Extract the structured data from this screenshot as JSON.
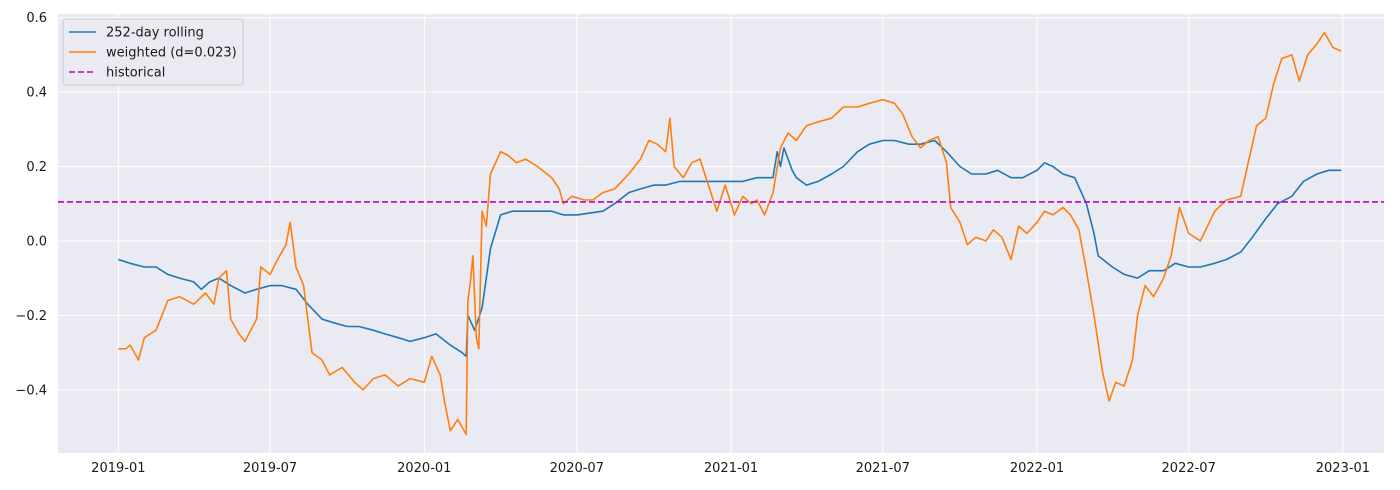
{
  "chart_data": {
    "type": "line",
    "title": "",
    "xlabel": "",
    "ylabel": "",
    "xlim": [
      "2018-10-21",
      "2023-02-19"
    ],
    "ylim": [
      -0.57,
      0.61
    ],
    "grid": true,
    "legend_position": "top-left",
    "x_ticks": [
      "2019-01",
      "2019-07",
      "2020-01",
      "2020-07",
      "2021-01",
      "2021-07",
      "2022-01",
      "2022-07",
      "2023-01"
    ],
    "y_ticks": [
      -0.4,
      -0.2,
      0.0,
      0.2,
      0.4,
      0.6
    ],
    "y_tick_labels": [
      "−0.4",
      "−0.2",
      "0.0",
      "0.2",
      "0.4",
      "0.6"
    ],
    "series": [
      {
        "name": "252-day rolling",
        "color": "#1f77b4",
        "style": "solid",
        "points": [
          [
            "2019-01-01",
            -0.05
          ],
          [
            "2019-01-15",
            -0.06
          ],
          [
            "2019-02-01",
            -0.07
          ],
          [
            "2019-02-15",
            -0.07
          ],
          [
            "2019-03-01",
            -0.09
          ],
          [
            "2019-03-15",
            -0.1
          ],
          [
            "2019-04-01",
            -0.11
          ],
          [
            "2019-04-10",
            -0.13
          ],
          [
            "2019-04-20",
            -0.11
          ],
          [
            "2019-05-01",
            -0.1
          ],
          [
            "2019-05-15",
            -0.12
          ],
          [
            "2019-06-01",
            -0.14
          ],
          [
            "2019-06-15",
            -0.13
          ],
          [
            "2019-07-01",
            -0.12
          ],
          [
            "2019-07-15",
            -0.12
          ],
          [
            "2019-08-01",
            -0.13
          ],
          [
            "2019-08-15",
            -0.17
          ],
          [
            "2019-09-01",
            -0.21
          ],
          [
            "2019-09-15",
            -0.22
          ],
          [
            "2019-10-01",
            -0.23
          ],
          [
            "2019-10-15",
            -0.23
          ],
          [
            "2019-11-01",
            -0.24
          ],
          [
            "2019-11-15",
            -0.25
          ],
          [
            "2019-12-01",
            -0.26
          ],
          [
            "2019-12-15",
            -0.27
          ],
          [
            "2020-01-01",
            -0.26
          ],
          [
            "2020-01-15",
            -0.25
          ],
          [
            "2020-02-01",
            -0.28
          ],
          [
            "2020-02-15",
            -0.3
          ],
          [
            "2020-02-20",
            -0.31
          ],
          [
            "2020-02-22",
            -0.2
          ],
          [
            "2020-03-01",
            -0.24
          ],
          [
            "2020-03-10",
            -0.18
          ],
          [
            "2020-03-15",
            -0.1
          ],
          [
            "2020-03-20",
            -0.02
          ],
          [
            "2020-04-01",
            0.07
          ],
          [
            "2020-04-15",
            0.08
          ],
          [
            "2020-05-01",
            0.08
          ],
          [
            "2020-06-01",
            0.08
          ],
          [
            "2020-06-15",
            0.07
          ],
          [
            "2020-07-01",
            0.07
          ],
          [
            "2020-08-01",
            0.08
          ],
          [
            "2020-08-15",
            0.1
          ],
          [
            "2020-09-01",
            0.13
          ],
          [
            "2020-09-15",
            0.14
          ],
          [
            "2020-10-01",
            0.15
          ],
          [
            "2020-10-15",
            0.15
          ],
          [
            "2020-11-01",
            0.16
          ],
          [
            "2020-11-15",
            0.16
          ],
          [
            "2020-12-01",
            0.16
          ],
          [
            "2020-12-15",
            0.16
          ],
          [
            "2021-01-01",
            0.16
          ],
          [
            "2021-01-15",
            0.16
          ],
          [
            "2021-02-01",
            0.17
          ],
          [
            "2021-02-20",
            0.17
          ],
          [
            "2021-02-25",
            0.24
          ],
          [
            "2021-03-01",
            0.2
          ],
          [
            "2021-03-05",
            0.25
          ],
          [
            "2021-03-10",
            0.22
          ],
          [
            "2021-03-15",
            0.19
          ],
          [
            "2021-03-20",
            0.17
          ],
          [
            "2021-04-01",
            0.15
          ],
          [
            "2021-04-15",
            0.16
          ],
          [
            "2021-05-01",
            0.18
          ],
          [
            "2021-05-15",
            0.2
          ],
          [
            "2021-06-01",
            0.24
          ],
          [
            "2021-06-15",
            0.26
          ],
          [
            "2021-07-01",
            0.27
          ],
          [
            "2021-07-15",
            0.27
          ],
          [
            "2021-08-01",
            0.26
          ],
          [
            "2021-08-15",
            0.26
          ],
          [
            "2021-09-01",
            0.27
          ],
          [
            "2021-09-15",
            0.24
          ],
          [
            "2021-10-01",
            0.2
          ],
          [
            "2021-10-15",
            0.18
          ],
          [
            "2021-11-01",
            0.18
          ],
          [
            "2021-11-15",
            0.19
          ],
          [
            "2021-12-01",
            0.17
          ],
          [
            "2021-12-15",
            0.17
          ],
          [
            "2022-01-01",
            0.19
          ],
          [
            "2022-01-10",
            0.21
          ],
          [
            "2022-01-20",
            0.2
          ],
          [
            "2022-02-01",
            0.18
          ],
          [
            "2022-02-15",
            0.17
          ],
          [
            "2022-03-01",
            0.1
          ],
          [
            "2022-03-10",
            0.02
          ],
          [
            "2022-03-15",
            -0.04
          ],
          [
            "2022-04-01",
            -0.07
          ],
          [
            "2022-04-15",
            -0.09
          ],
          [
            "2022-05-01",
            -0.1
          ],
          [
            "2022-05-15",
            -0.08
          ],
          [
            "2022-06-01",
            -0.08
          ],
          [
            "2022-06-15",
            -0.06
          ],
          [
            "2022-07-01",
            -0.07
          ],
          [
            "2022-07-15",
            -0.07
          ],
          [
            "2022-08-01",
            -0.06
          ],
          [
            "2022-08-15",
            -0.05
          ],
          [
            "2022-09-01",
            -0.03
          ],
          [
            "2022-09-15",
            0.01
          ],
          [
            "2022-10-01",
            0.06
          ],
          [
            "2022-10-15",
            0.1
          ],
          [
            "2022-11-01",
            0.12
          ],
          [
            "2022-11-15",
            0.16
          ],
          [
            "2022-12-01",
            0.18
          ],
          [
            "2022-12-15",
            0.19
          ],
          [
            "2022-12-30",
            0.19
          ]
        ]
      },
      {
        "name": "weighted (d=0.023)",
        "color": "#ff7f0e",
        "style": "solid",
        "points": [
          [
            "2019-01-01",
            -0.29
          ],
          [
            "2019-01-10",
            -0.29
          ],
          [
            "2019-01-15",
            -0.28
          ],
          [
            "2019-01-25",
            -0.32
          ],
          [
            "2019-02-01",
            -0.26
          ],
          [
            "2019-02-15",
            -0.24
          ],
          [
            "2019-03-01",
            -0.16
          ],
          [
            "2019-03-15",
            -0.15
          ],
          [
            "2019-04-01",
            -0.17
          ],
          [
            "2019-04-15",
            -0.14
          ],
          [
            "2019-04-25",
            -0.17
          ],
          [
            "2019-05-01",
            -0.1
          ],
          [
            "2019-05-10",
            -0.08
          ],
          [
            "2019-05-15",
            -0.21
          ],
          [
            "2019-05-25",
            -0.25
          ],
          [
            "2019-06-01",
            -0.27
          ],
          [
            "2019-06-15",
            -0.21
          ],
          [
            "2019-06-20",
            -0.07
          ],
          [
            "2019-07-01",
            -0.09
          ],
          [
            "2019-07-10",
            -0.05
          ],
          [
            "2019-07-20",
            -0.01
          ],
          [
            "2019-07-25",
            0.05
          ],
          [
            "2019-08-01",
            -0.07
          ],
          [
            "2019-08-10",
            -0.12
          ],
          [
            "2019-08-20",
            -0.3
          ],
          [
            "2019-09-01",
            -0.32
          ],
          [
            "2019-09-10",
            -0.36
          ],
          [
            "2019-09-25",
            -0.34
          ],
          [
            "2019-10-10",
            -0.38
          ],
          [
            "2019-10-20",
            -0.4
          ],
          [
            "2019-11-01",
            -0.37
          ],
          [
            "2019-11-15",
            -0.36
          ],
          [
            "2019-12-01",
            -0.39
          ],
          [
            "2019-12-15",
            -0.37
          ],
          [
            "2020-01-01",
            -0.38
          ],
          [
            "2020-01-10",
            -0.31
          ],
          [
            "2020-01-20",
            -0.36
          ],
          [
            "2020-01-25",
            -0.43
          ],
          [
            "2020-02-01",
            -0.51
          ],
          [
            "2020-02-10",
            -0.48
          ],
          [
            "2020-02-20",
            -0.52
          ],
          [
            "2020-02-22",
            -0.16
          ],
          [
            "2020-02-25",
            -0.11
          ],
          [
            "2020-02-28",
            -0.04
          ],
          [
            "2020-03-03",
            -0.26
          ],
          [
            "2020-03-06",
            -0.29
          ],
          [
            "2020-03-10",
            0.08
          ],
          [
            "2020-03-15",
            0.04
          ],
          [
            "2020-03-20",
            0.18
          ],
          [
            "2020-04-01",
            0.24
          ],
          [
            "2020-04-10",
            0.23
          ],
          [
            "2020-04-20",
            0.21
          ],
          [
            "2020-05-01",
            0.22
          ],
          [
            "2020-05-15",
            0.2
          ],
          [
            "2020-06-01",
            0.17
          ],
          [
            "2020-06-10",
            0.14
          ],
          [
            "2020-06-15",
            0.1
          ],
          [
            "2020-06-25",
            0.12
          ],
          [
            "2020-07-10",
            0.11
          ],
          [
            "2020-07-20",
            0.11
          ],
          [
            "2020-08-01",
            0.13
          ],
          [
            "2020-08-15",
            0.14
          ],
          [
            "2020-09-01",
            0.18
          ],
          [
            "2020-09-15",
            0.22
          ],
          [
            "2020-09-25",
            0.27
          ],
          [
            "2020-10-05",
            0.26
          ],
          [
            "2020-10-15",
            0.24
          ],
          [
            "2020-10-20",
            0.33
          ],
          [
            "2020-10-25",
            0.2
          ],
          [
            "2020-11-05",
            0.17
          ],
          [
            "2020-11-15",
            0.21
          ],
          [
            "2020-11-25",
            0.22
          ],
          [
            "2020-12-05",
            0.15
          ],
          [
            "2020-12-15",
            0.08
          ],
          [
            "2020-12-25",
            0.15
          ],
          [
            "2021-01-05",
            0.07
          ],
          [
            "2021-01-15",
            0.12
          ],
          [
            "2021-01-25",
            0.1
          ],
          [
            "2021-02-01",
            0.11
          ],
          [
            "2021-02-10",
            0.07
          ],
          [
            "2021-02-20",
            0.13
          ],
          [
            "2021-03-01",
            0.25
          ],
          [
            "2021-03-10",
            0.29
          ],
          [
            "2021-03-20",
            0.27
          ],
          [
            "2021-04-01",
            0.31
          ],
          [
            "2021-04-15",
            0.32
          ],
          [
            "2021-05-01",
            0.33
          ],
          [
            "2021-05-15",
            0.36
          ],
          [
            "2021-06-01",
            0.36
          ],
          [
            "2021-06-15",
            0.37
          ],
          [
            "2021-07-01",
            0.38
          ],
          [
            "2021-07-15",
            0.37
          ],
          [
            "2021-07-25",
            0.34
          ],
          [
            "2021-08-05",
            0.28
          ],
          [
            "2021-08-15",
            0.25
          ],
          [
            "2021-08-25",
            0.27
          ],
          [
            "2021-09-05",
            0.28
          ],
          [
            "2021-09-15",
            0.21
          ],
          [
            "2021-09-20",
            0.09
          ],
          [
            "2021-10-01",
            0.05
          ],
          [
            "2021-10-10",
            -0.01
          ],
          [
            "2021-10-20",
            0.01
          ],
          [
            "2021-11-01",
            0.0
          ],
          [
            "2021-11-10",
            0.03
          ],
          [
            "2021-11-20",
            0.01
          ],
          [
            "2021-12-01",
            -0.05
          ],
          [
            "2021-12-10",
            0.04
          ],
          [
            "2021-12-20",
            0.02
          ],
          [
            "2022-01-01",
            0.05
          ],
          [
            "2022-01-10",
            0.08
          ],
          [
            "2022-01-20",
            0.07
          ],
          [
            "2022-02-01",
            0.09
          ],
          [
            "2022-02-10",
            0.07
          ],
          [
            "2022-02-20",
            0.03
          ],
          [
            "2022-03-01",
            -0.08
          ],
          [
            "2022-03-10",
            -0.2
          ],
          [
            "2022-03-20",
            -0.35
          ],
          [
            "2022-03-28",
            -0.43
          ],
          [
            "2022-04-05",
            -0.38
          ],
          [
            "2022-04-15",
            -0.39
          ],
          [
            "2022-04-25",
            -0.32
          ],
          [
            "2022-05-01",
            -0.2
          ],
          [
            "2022-05-10",
            -0.12
          ],
          [
            "2022-05-20",
            -0.15
          ],
          [
            "2022-06-01",
            -0.1
          ],
          [
            "2022-06-10",
            -0.04
          ],
          [
            "2022-06-20",
            0.09
          ],
          [
            "2022-07-01",
            0.02
          ],
          [
            "2022-07-15",
            0.0
          ],
          [
            "2022-08-01",
            0.08
          ],
          [
            "2022-08-15",
            0.11
          ],
          [
            "2022-09-01",
            0.12
          ],
          [
            "2022-09-10",
            0.21
          ],
          [
            "2022-09-20",
            0.31
          ],
          [
            "2022-10-01",
            0.33
          ],
          [
            "2022-10-10",
            0.42
          ],
          [
            "2022-10-20",
            0.49
          ],
          [
            "2022-11-01",
            0.5
          ],
          [
            "2022-11-10",
            0.43
          ],
          [
            "2022-11-20",
            0.5
          ],
          [
            "2022-12-01",
            0.53
          ],
          [
            "2022-12-10",
            0.56
          ],
          [
            "2022-12-20",
            0.52
          ],
          [
            "2022-12-30",
            0.51
          ]
        ]
      },
      {
        "name": "historical",
        "color": "#c000c0",
        "style": "dashed",
        "points": [
          [
            "2018-10-21",
            0.105
          ],
          [
            "2023-02-19",
            0.105
          ]
        ]
      }
    ]
  }
}
